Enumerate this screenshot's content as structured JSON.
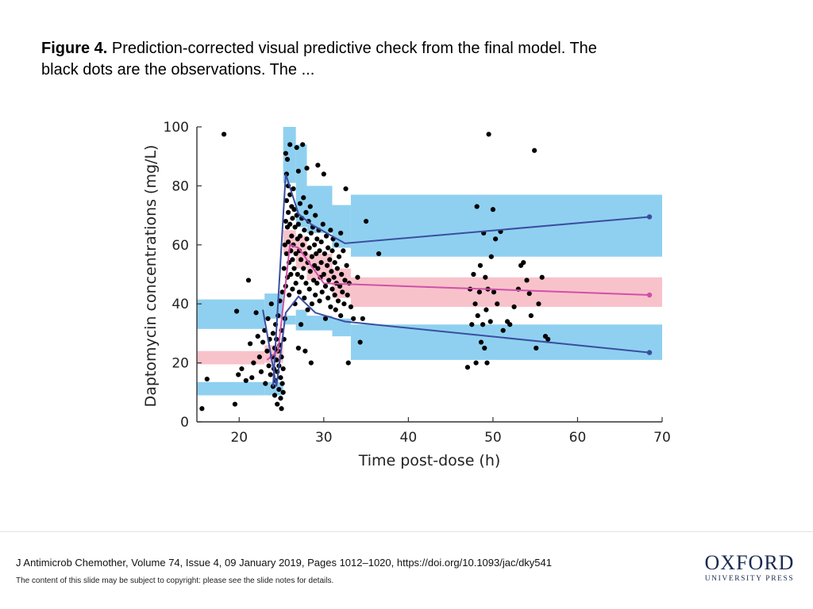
{
  "caption": {
    "figure_label": "Figure 4.",
    "text": " Prediction-corrected visual predictive check from the final model. The black dots are the observations. The ..."
  },
  "footer": {
    "citation": "J Antimicrob Chemother, Volume 74, Issue 4, 09 January 2019, Pages 1012–1020, https://doi.org/10.1093/jac/dky541",
    "copyright": "The content of this slide may be subject to copyright: please see the slide notes for details.",
    "logo_main": "OXFORD",
    "logo_sub": "UNIVERSITY PRESS"
  },
  "colors": {
    "blue_band": "#8fd0f0",
    "pink_band": "#f8c2cb",
    "blue_line": "#3a4ea0",
    "pink_line": "#d050a8",
    "dots": "#000000",
    "logo": "#1a2b50"
  },
  "chart_data": {
    "type": "scatter",
    "xlabel": "Time post-dose (h)",
    "ylabel": "Daptomycin concentrations (mg/L)",
    "xlim": [
      15,
      70
    ],
    "ylim": [
      0,
      100
    ],
    "x_ticks": [
      20,
      30,
      40,
      50,
      60,
      70
    ],
    "y_ticks": [
      0,
      20,
      40,
      60,
      80,
      100
    ],
    "bins": [
      {
        "x0": 15,
        "x1": 23,
        "upper_pi": [
          31.5,
          41.5
        ],
        "median_pi": [
          19.5,
          24
        ],
        "lower_pi": [
          9,
          13.5
        ]
      },
      {
        "x0": 23,
        "x1": 25.2,
        "upper_pi": [
          35,
          43.5
        ],
        "median_pi": [
          20,
          26
        ],
        "lower_pi": [
          9,
          13.5
        ]
      },
      {
        "x0": 25.2,
        "x1": 26.7,
        "upper_pi": [
          81,
          100
        ],
        "median_pi": [
          57,
          65
        ],
        "lower_pi": [
          33,
          36
        ]
      },
      {
        "x0": 26.7,
        "x1": 28,
        "upper_pi": [
          66,
          94
        ],
        "median_pi": [
          52,
          63
        ],
        "lower_pi": [
          31,
          38
        ]
      },
      {
        "x0": 28,
        "x1": 31,
        "upper_pi": [
          64,
          80
        ],
        "median_pi": [
          48,
          57
        ],
        "lower_pi": [
          31,
          36
        ]
      },
      {
        "x0": 31,
        "x1": 33.2,
        "upper_pi": [
          59,
          73.5
        ],
        "median_pi": [
          42,
          52
        ],
        "lower_pi": [
          29,
          35
        ]
      },
      {
        "x0": 33.2,
        "x1": 70,
        "upper_pi": [
          56,
          77
        ],
        "median_pi": [
          39,
          49
        ],
        "lower_pi": [
          21,
          33
        ]
      }
    ],
    "series": [
      {
        "name": "upper",
        "color": "#3a4ea0",
        "points": [
          [
            24,
            12
          ],
          [
            25.5,
            84
          ],
          [
            27,
            70.5
          ],
          [
            28.5,
            67
          ],
          [
            32.5,
            60.5
          ],
          [
            68.5,
            69.5
          ]
        ]
      },
      {
        "name": "median",
        "color": "#d050a8",
        "points": [
          [
            23.3,
            21
          ],
          [
            24.6,
            24
          ],
          [
            26,
            60
          ],
          [
            27,
            59
          ],
          [
            30,
            47
          ],
          [
            68.5,
            43
          ]
        ]
      },
      {
        "name": "lower",
        "color": "#3a4ea0",
        "points": [
          [
            22.8,
            38
          ],
          [
            24.4,
            12
          ],
          [
            25.5,
            37
          ],
          [
            27,
            42.5
          ],
          [
            29,
            37
          ],
          [
            32.5,
            34
          ],
          [
            68.5,
            23.5
          ]
        ]
      }
    ],
    "observations": [
      [
        15.6,
        4.5
      ],
      [
        16.2,
        14.5
      ],
      [
        18.2,
        97.5
      ],
      [
        19.5,
        6
      ],
      [
        19.7,
        37.5
      ],
      [
        19.9,
        16
      ],
      [
        20.3,
        18
      ],
      [
        20.8,
        14
      ],
      [
        21.1,
        48
      ],
      [
        21.3,
        26.5
      ],
      [
        21.5,
        15
      ],
      [
        21.7,
        20
      ],
      [
        22.0,
        37
      ],
      [
        22.2,
        29
      ],
      [
        22.4,
        22
      ],
      [
        22.6,
        17
      ],
      [
        22.8,
        27
      ],
      [
        23.0,
        31
      ],
      [
        23.1,
        13
      ],
      [
        23.3,
        24
      ],
      [
        23.4,
        35
      ],
      [
        23.5,
        19
      ],
      [
        23.6,
        28
      ],
      [
        23.7,
        16
      ],
      [
        23.8,
        40
      ],
      [
        23.9,
        22
      ],
      [
        24.0,
        12
      ],
      [
        24.0,
        30
      ],
      [
        24.1,
        18
      ],
      [
        24.2,
        25
      ],
      [
        24.2,
        9
      ],
      [
        24.3,
        33
      ],
      [
        24.3,
        14
      ],
      [
        24.4,
        21
      ],
      [
        24.4,
        28
      ],
      [
        24.5,
        6
      ],
      [
        24.5,
        17
      ],
      [
        24.6,
        24
      ],
      [
        24.6,
        36
      ],
      [
        24.7,
        11
      ],
      [
        24.7,
        19
      ],
      [
        24.8,
        26
      ],
      [
        24.8,
        41
      ],
      [
        24.9,
        15
      ],
      [
        24.9,
        8
      ],
      [
        25.0,
        4.5
      ],
      [
        25.0,
        22
      ],
      [
        25.0,
        31
      ],
      [
        25.1,
        13
      ],
      [
        25.1,
        44
      ],
      [
        25.2,
        18
      ],
      [
        25.2,
        10
      ],
      [
        25.3,
        28
      ],
      [
        25.3,
        52
      ],
      [
        25.4,
        35
      ],
      [
        25.4,
        60
      ],
      [
        25.5,
        91
      ],
      [
        25.5,
        68
      ],
      [
        25.5,
        46
      ],
      [
        25.6,
        84
      ],
      [
        25.6,
        75
      ],
      [
        25.6,
        57
      ],
      [
        25.7,
        89
      ],
      [
        25.7,
        66
      ],
      [
        25.7,
        49
      ],
      [
        25.8,
        80
      ],
      [
        25.8,
        71
      ],
      [
        25.8,
        61
      ],
      [
        25.9,
        54
      ],
      [
        25.9,
        43
      ],
      [
        26.0,
        94
      ],
      [
        26.0,
        77
      ],
      [
        26.0,
        67
      ],
      [
        26.1,
        58
      ],
      [
        26.1,
        50
      ],
      [
        26.2,
        73
      ],
      [
        26.2,
        63
      ],
      [
        26.3,
        69
      ],
      [
        26.3,
        55
      ],
      [
        26.3,
        45
      ],
      [
        26.4,
        79
      ],
      [
        26.4,
        60
      ],
      [
        26.5,
        72
      ],
      [
        26.5,
        52
      ],
      [
        26.6,
        66
      ],
      [
        26.6,
        40
      ],
      [
        26.7,
        57
      ],
      [
        26.7,
        47
      ],
      [
        26.8,
        93
      ],
      [
        26.8,
        70
      ],
      [
        26.9,
        62
      ],
      [
        26.9,
        50
      ],
      [
        27.0,
        85
      ],
      [
        27.0,
        67
      ],
      [
        27.0,
        25
      ],
      [
        27.1,
        58
      ],
      [
        27.1,
        44
      ],
      [
        27.2,
        74
      ],
      [
        27.2,
        63
      ],
      [
        27.3,
        55
      ],
      [
        27.3,
        33
      ],
      [
        27.4,
        69
      ],
      [
        27.4,
        49
      ],
      [
        27.5,
        94
      ],
      [
        27.5,
        60
      ],
      [
        27.6,
        76
      ],
      [
        27.6,
        52
      ],
      [
        27.7,
        65
      ],
      [
        27.7,
        42
      ],
      [
        27.8,
        57
      ],
      [
        27.8,
        24
      ],
      [
        27.9,
        71
      ],
      [
        27.9,
        47
      ],
      [
        28.0,
        86
      ],
      [
        28.0,
        62
      ],
      [
        28.1,
        54
      ],
      [
        28.1,
        38
      ],
      [
        28.2,
        68
      ],
      [
        28.3,
        59
      ],
      [
        28.3,
        45
      ],
      [
        28.4,
        73
      ],
      [
        28.4,
        51
      ],
      [
        28.5,
        64
      ],
      [
        28.5,
        20
      ],
      [
        28.6,
        56
      ],
      [
        28.6,
        40
      ],
      [
        28.7,
        66
      ],
      [
        28.8,
        48
      ],
      [
        28.9,
        60
      ],
      [
        28.9,
        53
      ],
      [
        29.0,
        70
      ],
      [
        29.0,
        43
      ],
      [
        29.1,
        57
      ],
      [
        29.2,
        62
      ],
      [
        29.2,
        47
      ],
      [
        29.3,
        87
      ],
      [
        29.3,
        52
      ],
      [
        29.4,
        65
      ],
      [
        29.5,
        41
      ],
      [
        29.5,
        58
      ],
      [
        29.6,
        49
      ],
      [
        29.7,
        61
      ],
      [
        29.7,
        54
      ],
      [
        29.8,
        44
      ],
      [
        29.9,
        67
      ],
      [
        30.0,
        84
      ],
      [
        30.0,
        50
      ],
      [
        30.1,
        57
      ],
      [
        30.2,
        46
      ],
      [
        30.2,
        35
      ],
      [
        30.3,
        63
      ],
      [
        30.4,
        53
      ],
      [
        30.5,
        42
      ],
      [
        30.5,
        59
      ],
      [
        30.6,
        48
      ],
      [
        30.7,
        55
      ],
      [
        30.8,
        65
      ],
      [
        30.8,
        39
      ],
      [
        30.9,
        51
      ],
      [
        31.0,
        45
      ],
      [
        31.0,
        58
      ],
      [
        31.1,
        62
      ],
      [
        31.2,
        49
      ],
      [
        31.3,
        43
      ],
      [
        31.3,
        54
      ],
      [
        31.4,
        38
      ],
      [
        31.5,
        60
      ],
      [
        31.5,
        47
      ],
      [
        31.6,
        52
      ],
      [
        31.7,
        41
      ],
      [
        31.8,
        56
      ],
      [
        31.9,
        46
      ],
      [
        32.0,
        64
      ],
      [
        32.0,
        36
      ],
      [
        32.1,
        50
      ],
      [
        32.2,
        44
      ],
      [
        32.3,
        58
      ],
      [
        32.4,
        40
      ],
      [
        32.5,
        48
      ],
      [
        32.6,
        79
      ],
      [
        32.7,
        53
      ],
      [
        32.8,
        43
      ],
      [
        32.9,
        20
      ],
      [
        33.0,
        47
      ],
      [
        33.2,
        39
      ],
      [
        33.5,
        35
      ],
      [
        34.0,
        49
      ],
      [
        34.3,
        27
      ],
      [
        34.6,
        35
      ],
      [
        35.0,
        68
      ],
      [
        36.5,
        57
      ],
      [
        47.0,
        18.5
      ],
      [
        47.3,
        45
      ],
      [
        47.5,
        33
      ],
      [
        47.7,
        50
      ],
      [
        47.9,
        40
      ],
      [
        48.0,
        20
      ],
      [
        48.1,
        73
      ],
      [
        48.2,
        36
      ],
      [
        48.4,
        44
      ],
      [
        48.5,
        53
      ],
      [
        48.6,
        27
      ],
      [
        48.8,
        33
      ],
      [
        48.9,
        64
      ],
      [
        49.0,
        25
      ],
      [
        49.1,
        49
      ],
      [
        49.2,
        38
      ],
      [
        49.3,
        20
      ],
      [
        49.4,
        45
      ],
      [
        49.5,
        97.5
      ],
      [
        49.7,
        34
      ],
      [
        49.8,
        56
      ],
      [
        50.0,
        72
      ],
      [
        50.1,
        44
      ],
      [
        50.3,
        62
      ],
      [
        50.5,
        40
      ],
      [
        50.9,
        64.5
      ],
      [
        51.2,
        31
      ],
      [
        51.7,
        34
      ],
      [
        52.0,
        33
      ],
      [
        52.5,
        39
      ],
      [
        53.0,
        45
      ],
      [
        53.3,
        53
      ],
      [
        53.6,
        54
      ],
      [
        54.0,
        48
      ],
      [
        54.3,
        43.5
      ],
      [
        54.5,
        36
      ],
      [
        54.9,
        92
      ],
      [
        55.1,
        25
      ],
      [
        55.4,
        40
      ],
      [
        55.8,
        49
      ],
      [
        56.2,
        29
      ],
      [
        56.5,
        28
      ]
    ]
  }
}
